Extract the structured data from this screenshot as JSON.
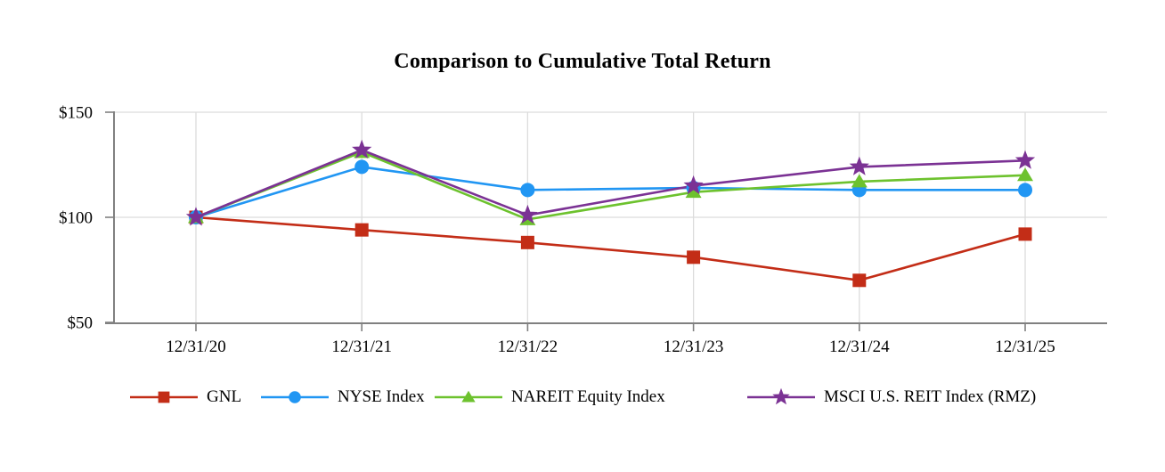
{
  "chart_data": {
    "type": "line",
    "title": "Comparison to Cumulative Total Return",
    "categories": [
      "12/31/20",
      "12/31/21",
      "12/31/22",
      "12/31/23",
      "12/31/24",
      "12/31/25"
    ],
    "series": [
      {
        "name": "GNL",
        "marker": "square",
        "color": "#C32D17",
        "values": [
          100,
          94,
          88,
          81,
          70,
          92
        ]
      },
      {
        "name": "NYSE Index",
        "marker": "circle",
        "color": "#2196F3",
        "values": [
          100,
          124,
          113,
          114,
          113,
          113
        ]
      },
      {
        "name": "NAREIT Equity Index",
        "marker": "triangle",
        "color": "#6DC22E",
        "values": [
          100,
          131,
          99,
          112,
          117,
          120
        ]
      },
      {
        "name": "MSCI U.S. REIT Index (RMZ)",
        "marker": "star",
        "color": "#7B3294",
        "values": [
          100,
          132,
          101,
          115,
          124,
          127
        ]
      }
    ],
    "ylim": [
      50,
      150
    ],
    "yticks": [
      {
        "value": 150,
        "label": "$150"
      },
      {
        "value": 100,
        "label": "$100"
      },
      {
        "value": 50,
        "label": "$50"
      }
    ],
    "xlabel": "",
    "ylabel": "",
    "grid": true,
    "legend_position": "bottom",
    "axis_color": "#808080",
    "grid_color": "#DCDCDC",
    "text_color": "#000000"
  }
}
